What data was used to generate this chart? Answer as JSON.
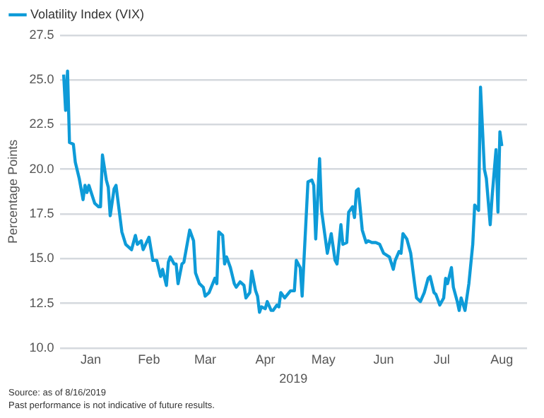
{
  "chart_data": {
    "type": "line",
    "xlabel": "2019",
    "ylabel": "Percentage Points",
    "legend": "top left",
    "grid": "y",
    "marker": "none",
    "line_style": "solid",
    "xlim": [
      "2018-12-31",
      "2019-08-29"
    ],
    "xticks": [
      {
        "value": "2019-01-16",
        "label": "Jan"
      },
      {
        "value": "2019-02-15",
        "label": "Feb"
      },
      {
        "value": "2019-03-16",
        "label": "Mar"
      },
      {
        "value": "2019-04-16",
        "label": "Apr"
      },
      {
        "value": "2019-05-16",
        "label": "May"
      },
      {
        "value": "2019-06-16",
        "label": "Jun"
      },
      {
        "value": "2019-07-16",
        "label": "Jul"
      },
      {
        "value": "2019-08-16",
        "label": "Aug"
      }
    ],
    "ylim": [
      10,
      27.5
    ],
    "yticks": [
      {
        "value": 10,
        "label": "10.0"
      },
      {
        "value": 12.5,
        "label": "12.5"
      },
      {
        "value": 15,
        "label": "15.0"
      },
      {
        "value": 17.5,
        "label": "17.5"
      },
      {
        "value": 20,
        "label": "20.0"
      },
      {
        "value": 22.5,
        "label": "22.5"
      },
      {
        "value": 25,
        "label": "25.0"
      },
      {
        "value": 27.5,
        "label": "27.5"
      }
    ],
    "x": [
      "2019-01-02",
      "2019-01-03",
      "2019-01-04",
      "2019-01-05",
      "2019-01-07",
      "2019-01-08",
      "2019-01-10",
      "2019-01-12",
      "2019-01-13",
      "2019-01-14",
      "2019-01-15",
      "2019-01-18",
      "2019-01-20",
      "2019-01-21",
      "2019-01-22",
      "2019-01-24",
      "2019-01-25",
      "2019-01-26",
      "2019-01-28",
      "2019-01-29",
      "2019-02-01",
      "2019-02-03",
      "2019-02-06",
      "2019-02-08",
      "2019-02-09",
      "2019-02-11",
      "2019-02-12",
      "2019-02-15",
      "2019-02-17",
      "2019-02-19",
      "2019-02-21",
      "2019-02-22",
      "2019-02-24",
      "2019-02-25",
      "2019-02-26",
      "2019-02-28",
      "2019-03-01",
      "2019-03-02",
      "2019-03-04",
      "2019-03-05",
      "2019-03-08",
      "2019-03-10",
      "2019-03-11",
      "2019-03-13",
      "2019-03-15",
      "2019-03-16",
      "2019-03-18",
      "2019-03-21",
      "2019-03-22",
      "2019-03-23",
      "2019-03-25",
      "2019-03-26",
      "2019-03-27",
      "2019-03-29",
      "2019-03-31",
      "2019-04-01",
      "2019-04-03",
      "2019-04-05",
      "2019-04-06",
      "2019-04-08",
      "2019-04-09",
      "2019-04-11",
      "2019-04-12",
      "2019-04-13",
      "2019-04-14",
      "2019-04-16",
      "2019-04-17",
      "2019-04-19",
      "2019-04-20",
      "2019-04-22",
      "2019-04-23",
      "2019-04-24",
      "2019-04-26",
      "2019-04-29",
      "2019-05-01",
      "2019-05-02",
      "2019-05-04",
      "2019-05-05",
      "2019-05-08",
      "2019-05-10",
      "2019-05-11",
      "2019-05-12",
      "2019-05-14",
      "2019-05-15",
      "2019-05-18",
      "2019-05-20",
      "2019-05-22",
      "2019-05-23",
      "2019-05-25",
      "2019-05-26",
      "2019-05-28",
      "2019-05-29",
      "2019-05-31",
      "2019-06-01",
      "2019-06-02",
      "2019-06-03",
      "2019-06-05",
      "2019-06-07",
      "2019-06-08",
      "2019-06-10",
      "2019-06-12",
      "2019-06-14",
      "2019-06-16",
      "2019-06-19",
      "2019-06-21",
      "2019-06-22",
      "2019-06-24",
      "2019-06-25",
      "2019-06-26",
      "2019-06-28",
      "2019-06-30",
      "2019-07-02",
      "2019-07-03",
      "2019-07-05",
      "2019-07-07",
      "2019-07-09",
      "2019-07-10",
      "2019-07-12",
      "2019-07-13",
      "2019-07-15",
      "2019-07-17",
      "2019-07-18",
      "2019-07-19",
      "2019-07-21",
      "2019-07-22",
      "2019-07-24",
      "2019-07-25",
      "2019-07-26",
      "2019-07-28",
      "2019-07-30",
      "2019-08-01",
      "2019-08-02",
      "2019-08-04",
      "2019-08-05",
      "2019-08-07",
      "2019-08-08",
      "2019-08-10",
      "2019-08-11",
      "2019-08-13",
      "2019-08-14",
      "2019-08-15",
      "2019-08-16"
    ],
    "series": [
      {
        "name": "Volatility Index (VIX)",
        "color": "#0e9bd8",
        "values": [
          25.3,
          23.3,
          25.5,
          21.5,
          21.4,
          20.4,
          19.5,
          18.3,
          19.1,
          18.7,
          19.1,
          18.1,
          17.9,
          17.9,
          20.8,
          19.4,
          19.0,
          17.4,
          18.9,
          19.1,
          16.5,
          15.8,
          15.5,
          16.3,
          15.8,
          16.0,
          15.5,
          16.2,
          14.9,
          14.9,
          14.0,
          14.4,
          13.5,
          14.8,
          15.1,
          14.7,
          14.7,
          13.6,
          14.7,
          14.8,
          16.6,
          16.0,
          14.2,
          13.6,
          13.4,
          12.9,
          13.1,
          13.9,
          13.6,
          16.5,
          16.3,
          14.7,
          15.1,
          14.5,
          13.6,
          13.4,
          13.7,
          13.5,
          12.8,
          13.1,
          14.3,
          13.2,
          12.9,
          12.0,
          12.3,
          12.2,
          12.6,
          12.1,
          12.1,
          12.4,
          12.3,
          13.1,
          12.8,
          13.2,
          13.2,
          14.9,
          14.5,
          12.9,
          19.3,
          19.4,
          19.1,
          16.1,
          20.6,
          17.7,
          15.3,
          16.4,
          14.9,
          14.7,
          16.9,
          15.8,
          15.9,
          17.6,
          17.9,
          17.3,
          18.8,
          18.9,
          16.6,
          15.9,
          16.0,
          15.9,
          15.9,
          15.8,
          15.3,
          15.1,
          14.4,
          14.9,
          15.4,
          15.3,
          16.4,
          16.1,
          15.3,
          13.6,
          12.8,
          12.6,
          13.1,
          13.9,
          14.0,
          13.1,
          13.0,
          12.4,
          12.8,
          13.9,
          13.6,
          14.5,
          13.4,
          12.6,
          12.1,
          12.8,
          12.1,
          13.6,
          15.8,
          18.0,
          17.7,
          24.6,
          20.0,
          19.5,
          16.9,
          18.5,
          21.1,
          17.6,
          22.1,
          21.3
        ]
      }
    ],
    "annotations": [
      "Source: as of 8/16/2019",
      "Past performance is not indicative of future results."
    ]
  }
}
